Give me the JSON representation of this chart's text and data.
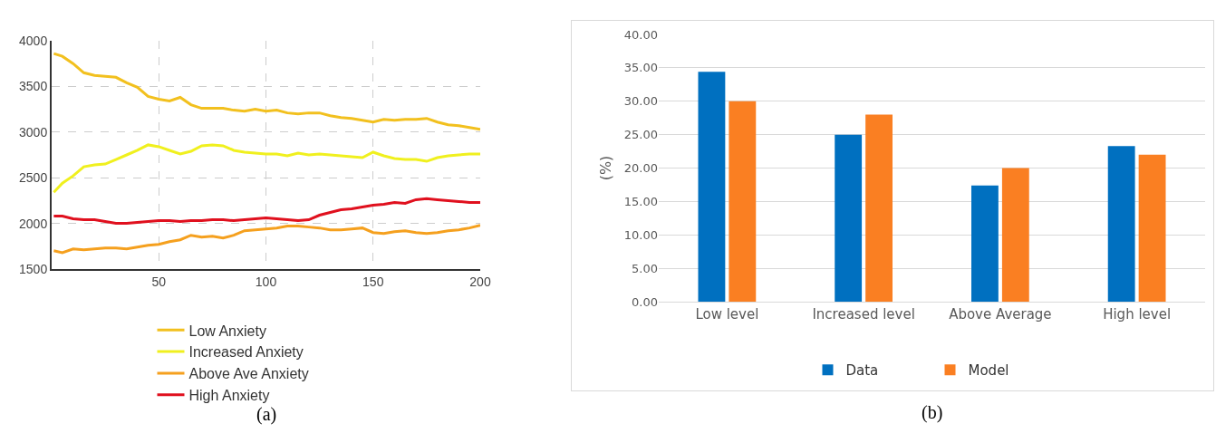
{
  "chart_data": [
    {
      "type": "line",
      "x": [
        1,
        5,
        10,
        15,
        20,
        25,
        30,
        35,
        40,
        45,
        50,
        55,
        60,
        65,
        70,
        75,
        80,
        85,
        90,
        95,
        100,
        105,
        110,
        115,
        120,
        125,
        130,
        135,
        140,
        145,
        150,
        155,
        160,
        165,
        170,
        175,
        180,
        185,
        190,
        195,
        200
      ],
      "series": [
        {
          "name": "Low Anxiety",
          "color": "#f2c01e",
          "values": [
            3860,
            3830,
            3750,
            3650,
            3620,
            3610,
            3600,
            3540,
            3490,
            3390,
            3360,
            3340,
            3380,
            3300,
            3260,
            3260,
            3260,
            3240,
            3230,
            3250,
            3230,
            3240,
            3210,
            3200,
            3210,
            3210,
            3180,
            3160,
            3150,
            3130,
            3110,
            3140,
            3130,
            3140,
            3140,
            3150,
            3110,
            3080,
            3070,
            3050,
            3030
          ]
        },
        {
          "name": "Increased Anxiety",
          "color": "#f0f01e",
          "values": [
            2340,
            2440,
            2520,
            2620,
            2640,
            2650,
            2700,
            2750,
            2800,
            2860,
            2840,
            2800,
            2760,
            2790,
            2850,
            2860,
            2850,
            2800,
            2780,
            2770,
            2760,
            2760,
            2740,
            2770,
            2750,
            2760,
            2750,
            2740,
            2730,
            2720,
            2780,
            2740,
            2710,
            2700,
            2700,
            2680,
            2720,
            2740,
            2750,
            2760,
            2760
          ]
        },
        {
          "name": "Above Ave Anxiety",
          "color": "#f5a01e",
          "values": [
            1700,
            1680,
            1720,
            1710,
            1720,
            1730,
            1730,
            1720,
            1740,
            1760,
            1770,
            1800,
            1820,
            1870,
            1850,
            1860,
            1840,
            1870,
            1920,
            1930,
            1940,
            1950,
            1970,
            1970,
            1960,
            1950,
            1930,
            1930,
            1940,
            1950,
            1900,
            1890,
            1910,
            1920,
            1900,
            1890,
            1900,
            1920,
            1930,
            1950,
            1980
          ]
        },
        {
          "name": "High Anxiety",
          "color": "#e0101e",
          "values": [
            2080,
            2080,
            2050,
            2040,
            2040,
            2020,
            2000,
            2000,
            2010,
            2020,
            2030,
            2030,
            2020,
            2030,
            2030,
            2040,
            2040,
            2030,
            2040,
            2050,
            2060,
            2050,
            2040,
            2030,
            2040,
            2090,
            2120,
            2150,
            2160,
            2180,
            2200,
            2210,
            2230,
            2220,
            2260,
            2270,
            2260,
            2250,
            2240,
            2230,
            2230
          ]
        }
      ],
      "xlim": [
        0,
        200
      ],
      "xticks": [
        50,
        100,
        150,
        200
      ],
      "ylim": [
        1500,
        4000
      ],
      "yticks": [
        1500,
        2000,
        2500,
        3000,
        3500,
        4000
      ],
      "grid": true,
      "legend": "bottom",
      "line_style": "solid",
      "annotations": [
        "(a)"
      ]
    },
    {
      "type": "bar",
      "categories": [
        "Low level",
        "Increased level",
        "Above Average",
        "High level"
      ],
      "series": [
        {
          "name": "Data",
          "color": "#0070c0",
          "values": [
            34.4,
            25.0,
            17.4,
            23.3
          ]
        },
        {
          "name": "Model",
          "color": "#fa7f22",
          "values": [
            30.0,
            28.0,
            20.0,
            22.0
          ]
        }
      ],
      "ylabel": "(%)",
      "ylim": [
        0,
        40
      ],
      "yticks": [
        {
          "value": 0,
          "label": "0.00"
        },
        {
          "value": 5,
          "label": "5.00"
        },
        {
          "value": 10,
          "label": "10.00"
        },
        {
          "value": 15,
          "label": "15.00"
        },
        {
          "value": 20,
          "label": "20.00"
        },
        {
          "value": 25,
          "label": "25.00"
        },
        {
          "value": 30,
          "label": "30.00"
        },
        {
          "value": 35,
          "label": "35.00"
        },
        {
          "value": 40,
          "label": "40.00"
        }
      ],
      "grid": "y",
      "legend": "bottom",
      "annotations": [
        "(b)"
      ]
    }
  ]
}
